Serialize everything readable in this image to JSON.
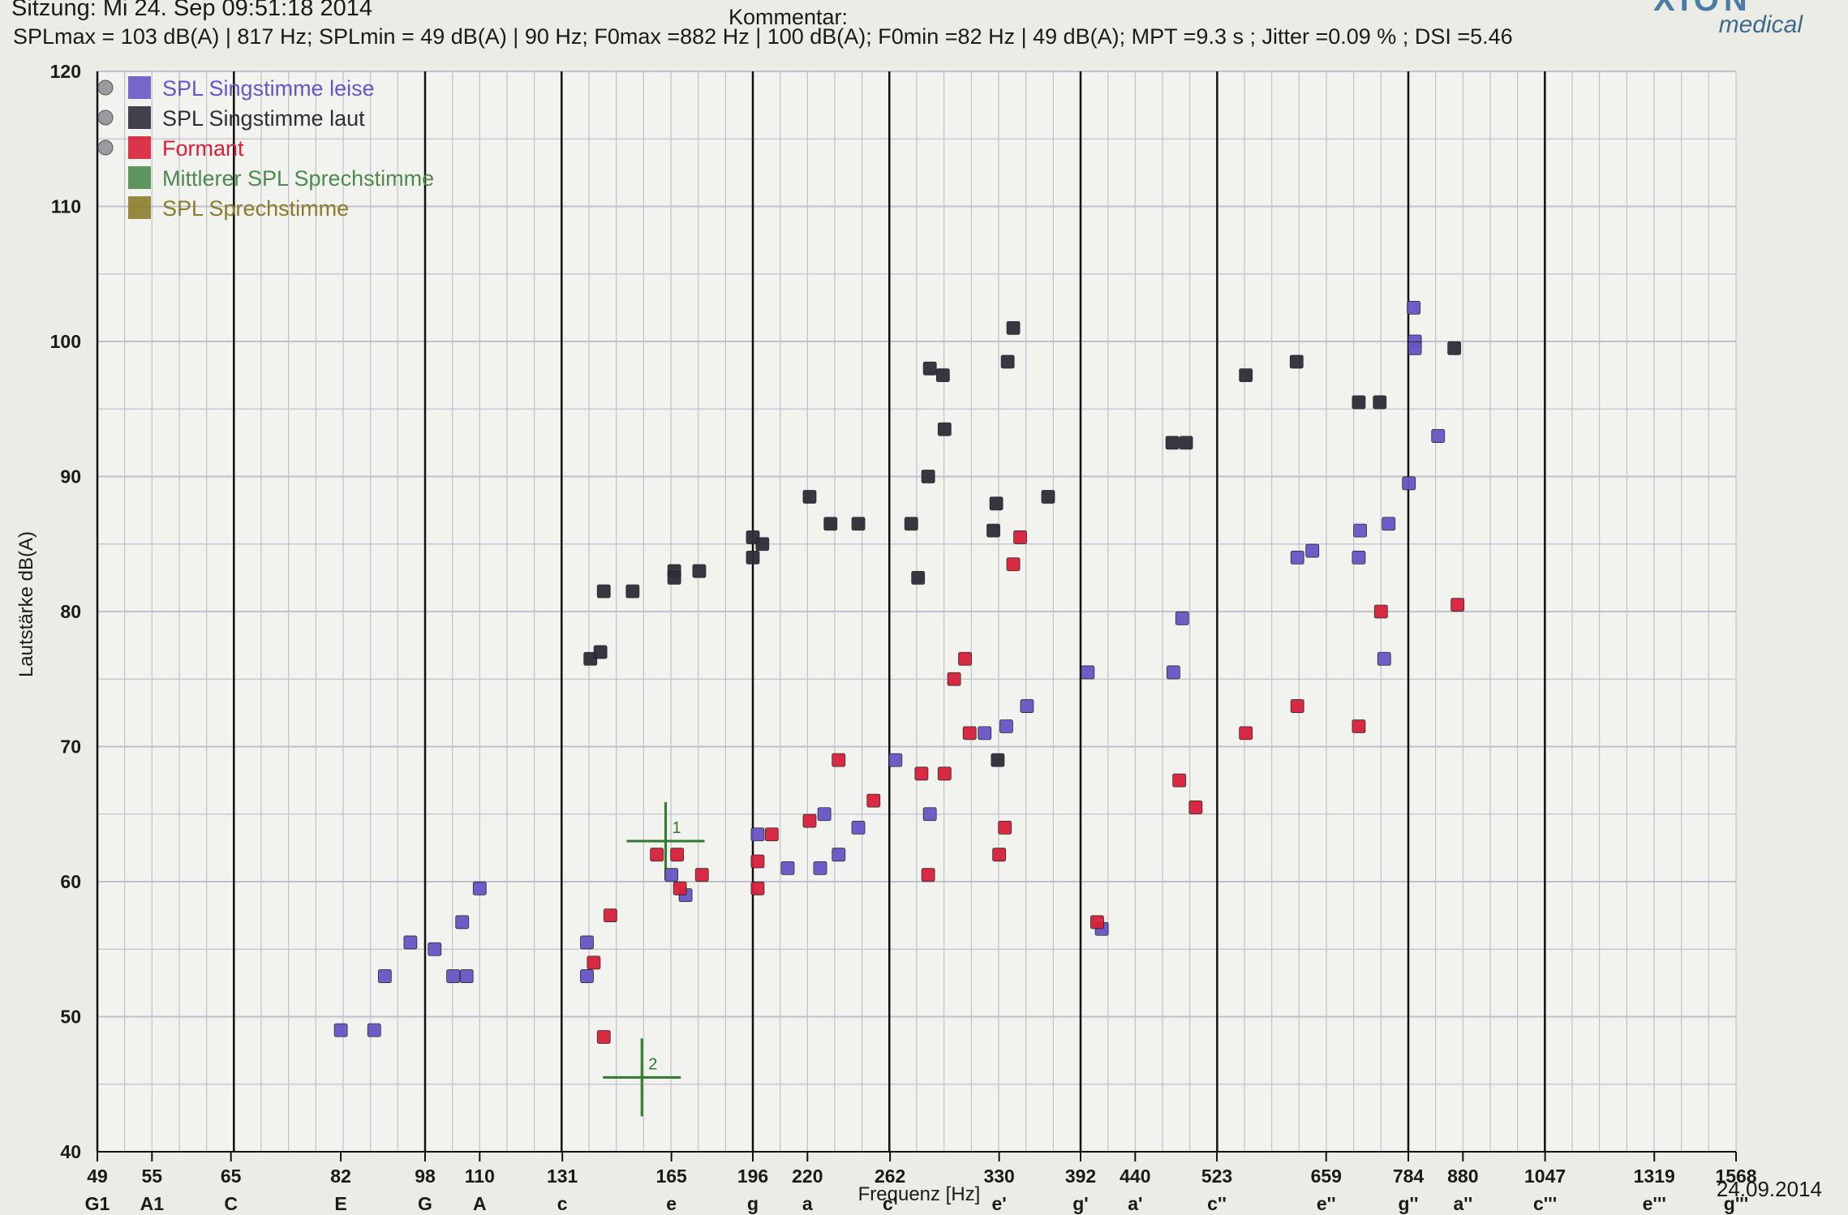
{
  "header": {
    "sitzung": "Sitzung: Mi 24. Sep 09:51:18 2014",
    "kommentar": "Kommentar:",
    "stats": "SPLmax = 103 dB(A) | 817 Hz; SPLmin = 49 dB(A) | 90 Hz; F0max =882 Hz | 100 dB(A); F0min =82 Hz | 49 dB(A); MPT =9.3 s ; Jitter =0.09 % ; DSI =5.46",
    "brand": "medical"
  },
  "footer": {
    "date": "24.09.2014"
  },
  "colors": {
    "leise": "#6a55c4",
    "laut": "#2f2d38",
    "formant": "#d8203a",
    "mittlerer": "#4e8a4e",
    "sprech": "#8a7d2a",
    "grid_minor": "#bfc1cc",
    "grid_major": "#111111",
    "marker": "#2e7a2e"
  },
  "chart_data": {
    "type": "scatter",
    "xlabel": "Frequenz [Hz]",
    "ylabel": "Lautstärke dB(A)",
    "x_scale": "log",
    "xlim": [
      49,
      1568
    ],
    "ylim": [
      40,
      120
    ],
    "y_ticks": [
      40,
      50,
      60,
      70,
      80,
      90,
      100,
      110,
      120
    ],
    "x_ticks": [
      {
        "hz": "49",
        "note": "G1"
      },
      {
        "hz": "55",
        "note": "A1"
      },
      {
        "hz": "65",
        "note": "C"
      },
      {
        "hz": "82",
        "note": "E"
      },
      {
        "hz": "98",
        "note": "G"
      },
      {
        "hz": "110",
        "note": "A"
      },
      {
        "hz": "131",
        "note": "c"
      },
      {
        "hz": "165",
        "note": "e"
      },
      {
        "hz": "196",
        "note": "g"
      },
      {
        "hz": "220",
        "note": "a"
      },
      {
        "hz": "262",
        "note": "c'"
      },
      {
        "hz": "330",
        "note": "e'"
      },
      {
        "hz": "392",
        "note": "g'"
      },
      {
        "hz": "440",
        "note": "a'"
      },
      {
        "hz": "523",
        "note": "c''"
      },
      {
        "hz": "659",
        "note": "e''"
      },
      {
        "hz": "784",
        "note": "g''"
      },
      {
        "hz": "880",
        "note": "a''"
      },
      {
        "hz": "1047",
        "note": "c'''"
      },
      {
        "hz": "1319",
        "note": "e'''"
      },
      {
        "hz": "1568",
        "note": "g'''"
      }
    ],
    "legend_position": "top-left",
    "legend": [
      {
        "key": "leise",
        "label": "SPL Singstimme leise"
      },
      {
        "key": "laut",
        "label": "SPL Singstimme laut"
      },
      {
        "key": "formant",
        "label": "Formant"
      },
      {
        "key": "mittlerer",
        "label": "Mittlerer SPL Sprechstimme"
      },
      {
        "key": "sprech",
        "label": "SPL Sprechstimme"
      }
    ],
    "series": [
      {
        "key": "leise",
        "points": [
          [
            82,
            49
          ],
          [
            88,
            49
          ],
          [
            90,
            53
          ],
          [
            95,
            55.5
          ],
          [
            100,
            55
          ],
          [
            104,
            53
          ],
          [
            107,
            53
          ],
          [
            106,
            57
          ],
          [
            110,
            59.5
          ],
          [
            138,
            55.5
          ],
          [
            138,
            53
          ],
          [
            165,
            60.5
          ],
          [
            170,
            59
          ],
          [
            198,
            63.5
          ],
          [
            211,
            61
          ],
          [
            226,
            61
          ],
          [
            228,
            65
          ],
          [
            235,
            62
          ],
          [
            245,
            64
          ],
          [
            265,
            69
          ],
          [
            285,
            65
          ],
          [
            320,
            71
          ],
          [
            335,
            71.5
          ],
          [
            350,
            73
          ],
          [
            398,
            75.5
          ],
          [
            410,
            56.5
          ],
          [
            477,
            75.5
          ],
          [
            486,
            79.5
          ],
          [
            620,
            84
          ],
          [
            640,
            84.5
          ],
          [
            706,
            84
          ],
          [
            708,
            86
          ],
          [
            745,
            76.5
          ],
          [
            752,
            86.5
          ],
          [
            785,
            89.5
          ],
          [
            793,
            102.5
          ],
          [
            795,
            100
          ],
          [
            795,
            99.5
          ],
          [
            835,
            93
          ]
        ]
      },
      {
        "key": "laut",
        "points": [
          [
            139,
            76.5
          ],
          [
            142,
            77
          ],
          [
            143,
            81.5
          ],
          [
            152,
            81.5
          ],
          [
            166,
            83
          ],
          [
            166,
            82.5
          ],
          [
            175,
            83
          ],
          [
            196,
            84
          ],
          [
            196,
            85.5
          ],
          [
            200,
            85
          ],
          [
            221,
            88.5
          ],
          [
            231,
            86.5
          ],
          [
            245,
            86.5
          ],
          [
            274,
            86.5
          ],
          [
            278,
            82.5
          ],
          [
            284,
            90
          ],
          [
            285,
            98
          ],
          [
            293,
            97.5
          ],
          [
            294,
            93.5
          ],
          [
            326,
            86
          ],
          [
            328,
            88
          ],
          [
            329,
            69
          ],
          [
            336,
            98.5
          ],
          [
            340,
            101
          ],
          [
            366,
            88.5
          ],
          [
            476,
            92.5
          ],
          [
            490,
            92.5
          ],
          [
            556,
            97.5
          ],
          [
            619,
            98.5
          ],
          [
            706,
            95.5
          ],
          [
            738,
            95.5
          ],
          [
            864,
            99.5
          ]
        ]
      },
      {
        "key": "formant",
        "points": [
          [
            140,
            54
          ],
          [
            145,
            57.5
          ],
          [
            143,
            48.5
          ],
          [
            160,
            62
          ],
          [
            167,
            62
          ],
          [
            168,
            59.5
          ],
          [
            176,
            60.5
          ],
          [
            198,
            59.5
          ],
          [
            198,
            61.5
          ],
          [
            204,
            63.5
          ],
          [
            221,
            64.5
          ],
          [
            235,
            69
          ],
          [
            253,
            66
          ],
          [
            280,
            68
          ],
          [
            284,
            60.5
          ],
          [
            294,
            68
          ],
          [
            300,
            75
          ],
          [
            307,
            76.5
          ],
          [
            310,
            71
          ],
          [
            330,
            62
          ],
          [
            334,
            64
          ],
          [
            340,
            83.5
          ],
          [
            345,
            85.5
          ],
          [
            406,
            57
          ],
          [
            483,
            67.5
          ],
          [
            500,
            65.5
          ],
          [
            556,
            71
          ],
          [
            620,
            73
          ],
          [
            706,
            71.5
          ],
          [
            740,
            80
          ],
          [
            870,
            80.5
          ]
        ]
      }
    ],
    "markers": [
      {
        "label": "1",
        "hz": 163,
        "db": 63
      },
      {
        "label": "2",
        "hz": 155,
        "db": 45.5
      }
    ]
  }
}
